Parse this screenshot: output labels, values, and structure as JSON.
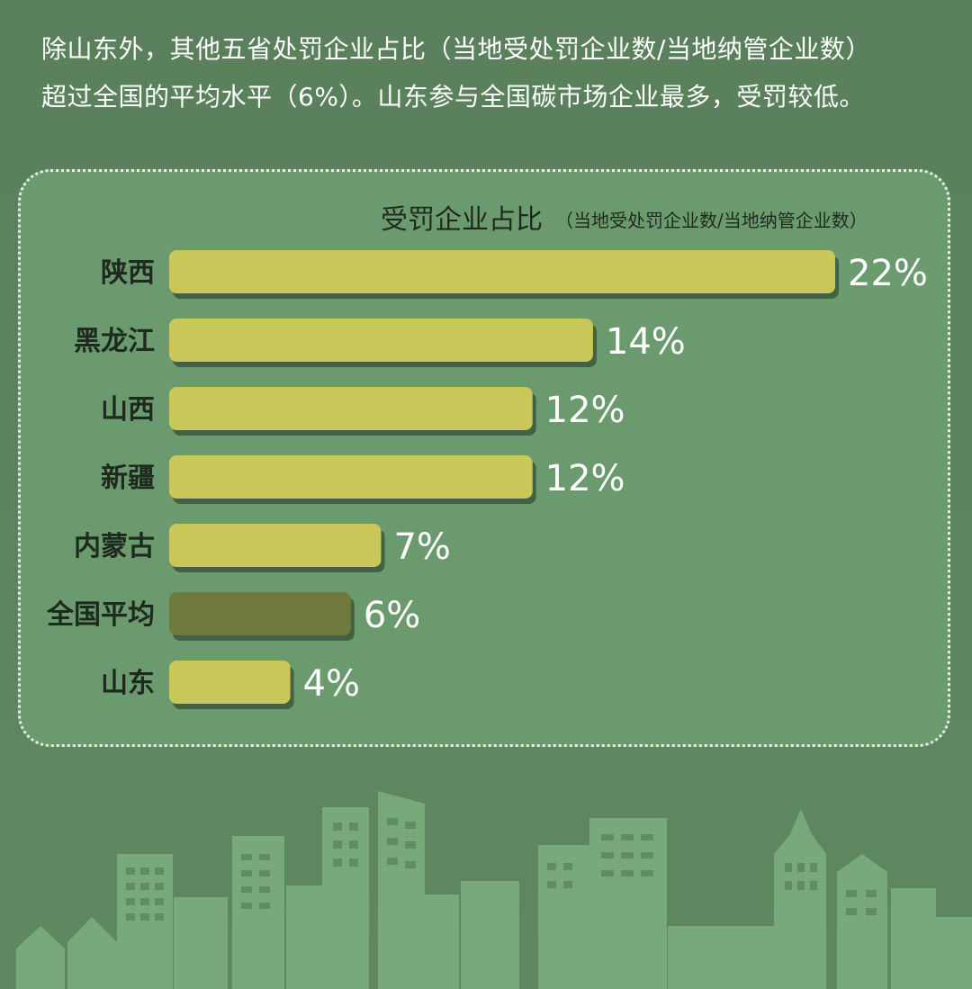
{
  "intro": {
    "line1": "除山东外，其他五省处罚企业占比（当地受处罚企业数/当地纳管企业数）",
    "line2": "超过全国的平均水平（6%）。山东参与全国碳市场企业最多，受罚较低。"
  },
  "colors": {
    "background": "#5a7f5c",
    "panel": "#6c9a6f",
    "bar": "#c9c65a",
    "bar_highlight": "#6f7a3e",
    "bar_shadow": "#3c5a3f",
    "text": "#ffffff",
    "label_dark": "#1f2a1f",
    "city": "#76a878"
  },
  "chart_data": {
    "type": "bar",
    "orientation": "horizontal",
    "title": "受罚企业占比",
    "subtitle": "（当地受处罚企业数/当地纳管企业数）",
    "categories": [
      "陕西",
      "黑龙江",
      "山西",
      "新疆",
      "内蒙古",
      "全国平均",
      "山东"
    ],
    "values": [
      22,
      14,
      12,
      12,
      7,
      6,
      4
    ],
    "value_labels": [
      "22%",
      "14%",
      "12%",
      "12%",
      "7%",
      "6%",
      "4%"
    ],
    "highlight_category": "全国平均",
    "unit": "%",
    "xlim": [
      0,
      22
    ],
    "grid": false,
    "legend": "none"
  }
}
